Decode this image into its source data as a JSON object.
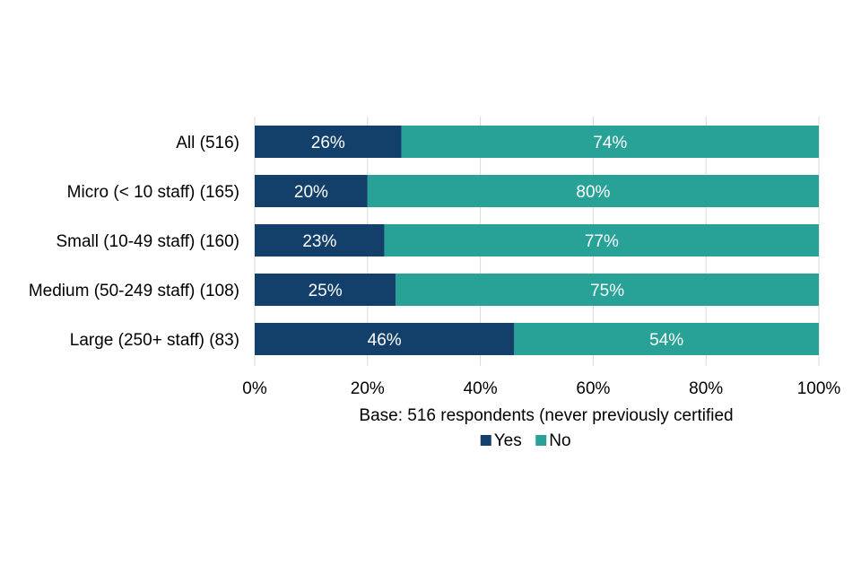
{
  "chart_data": {
    "type": "bar",
    "orientation": "horizontal",
    "stacked": true,
    "categories": [
      "All (516)",
      "Micro (< 10 staff) (165)",
      "Small (10-49 staff) (160)",
      "Medium (50-249 staff) (108)",
      "Large (250+ staff) (83)"
    ],
    "series": [
      {
        "name": "Yes",
        "values": [
          26,
          20,
          23,
          25,
          46
        ],
        "labels": [
          "26%",
          "20%",
          "23%",
          "25%",
          "46%"
        ],
        "color": "#133f6b"
      },
      {
        "name": "No",
        "values": [
          74,
          80,
          77,
          75,
          54
        ],
        "labels": [
          "74%",
          "80%",
          "77%",
          "75%",
          "54%"
        ],
        "color": "#28a197"
      }
    ],
    "xticks": [
      "0%",
      "20%",
      "40%",
      "60%",
      "80%",
      "100%"
    ],
    "xlim": [
      0,
      100
    ],
    "xlabel": "Base: 516 respondents (never previously certified",
    "ylabel": "",
    "grid": true,
    "legend_position": "bottom"
  }
}
